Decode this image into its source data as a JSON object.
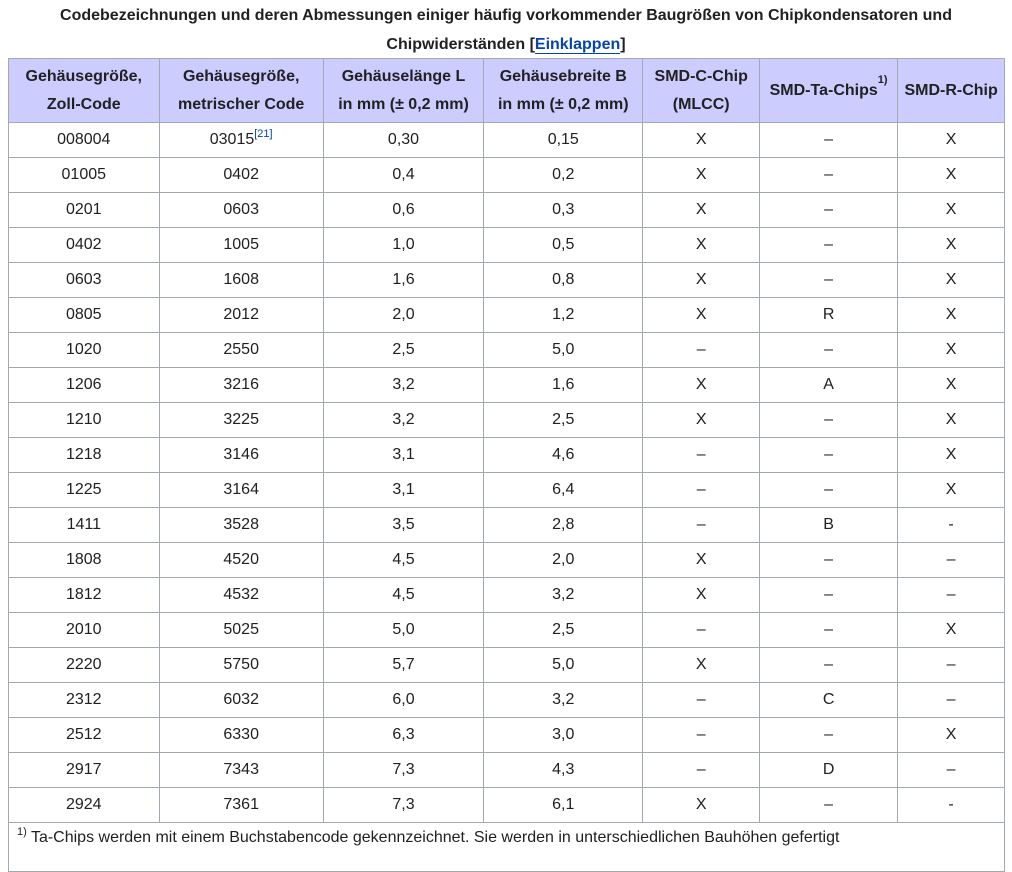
{
  "caption": {
    "line1": "Codebezeichnungen und deren Abmessungen einiger häufig vorkommender Baugrößen von Chipkondensatoren und",
    "line2": "Chipwiderständen",
    "toggle_open": "[",
    "toggle_label": "Einklappen",
    "toggle_close": "]"
  },
  "headers": {
    "c1a": "Gehäusegröße,",
    "c1b": "Zoll-Code",
    "c2a": "Gehäusegröße,",
    "c2b": "metrischer Code",
    "c3a": "Gehäuselänge L",
    "c3b": "in mm (± 0,2 mm)",
    "c4a": "Gehäusebreite B",
    "c4b": "in mm (± 0,2 mm)",
    "c5a": "SMD-C-Chip",
    "c5b": "(MLCC)",
    "c6": "SMD-Ta-Chips",
    "c6sup": "1)",
    "c7": "SMD-R-Chip"
  },
  "rows": [
    {
      "zoll": "008004",
      "metric": "03015",
      "metric_ref": "[21]",
      "l": "0,30",
      "b": "0,15",
      "c": "X",
      "ta": "–",
      "r": "X"
    },
    {
      "zoll": "01005",
      "metric": "0402",
      "l": "0,4",
      "b": "0,2",
      "c": "X",
      "ta": "–",
      "r": "X"
    },
    {
      "zoll": "0201",
      "metric": "0603",
      "l": "0,6",
      "b": "0,3",
      "c": "X",
      "ta": "–",
      "r": "X"
    },
    {
      "zoll": "0402",
      "metric": "1005",
      "l": "1,0",
      "b": "0,5",
      "c": "X",
      "ta": "–",
      "r": "X"
    },
    {
      "zoll": "0603",
      "metric": "1608",
      "l": "1,6",
      "b": "0,8",
      "c": "X",
      "ta": "–",
      "r": "X"
    },
    {
      "zoll": "0805",
      "metric": "2012",
      "l": "2,0",
      "b": "1,2",
      "c": "X",
      "ta": "R",
      "r": "X"
    },
    {
      "zoll": "1020",
      "metric": "2550",
      "l": "2,5",
      "b": "5,0",
      "c": "–",
      "ta": "–",
      "r": "X"
    },
    {
      "zoll": "1206",
      "metric": "3216",
      "l": "3,2",
      "b": "1,6",
      "c": "X",
      "ta": "A",
      "r": "X"
    },
    {
      "zoll": "1210",
      "metric": "3225",
      "l": "3,2",
      "b": "2,5",
      "c": "X",
      "ta": "–",
      "r": "X"
    },
    {
      "zoll": "1218",
      "metric": "3146",
      "l": "3,1",
      "b": "4,6",
      "c": "–",
      "ta": "–",
      "r": "X"
    },
    {
      "zoll": "1225",
      "metric": "3164",
      "l": "3,1",
      "b": "6,4",
      "c": "–",
      "ta": "–",
      "r": "X"
    },
    {
      "zoll": "1411",
      "metric": "3528",
      "l": "3,5",
      "b": "2,8",
      "c": "–",
      "ta": "B",
      "r": "-"
    },
    {
      "zoll": "1808",
      "metric": "4520",
      "l": "4,5",
      "b": "2,0",
      "c": "X",
      "ta": "–",
      "r": "–"
    },
    {
      "zoll": "1812",
      "metric": "4532",
      "l": "4,5",
      "b": "3,2",
      "c": "X",
      "ta": "–",
      "r": "–"
    },
    {
      "zoll": "2010",
      "metric": "5025",
      "l": "5,0",
      "b": "2,5",
      "c": "–",
      "ta": "–",
      "r": "X"
    },
    {
      "zoll": "2220",
      "metric": "5750",
      "l": "5,7",
      "b": "5,0",
      "c": "X",
      "ta": "–",
      "r": "–"
    },
    {
      "zoll": "2312",
      "metric": "6032",
      "l": "6,0",
      "b": "3,2",
      "c": "–",
      "ta": "C",
      "r": "–"
    },
    {
      "zoll": "2512",
      "metric": "6330",
      "l": "6,3",
      "b": "3,0",
      "c": "–",
      "ta": "–",
      "r": "X"
    },
    {
      "zoll": "2917",
      "metric": "7343",
      "l": "7,3",
      "b": "4,3",
      "c": "–",
      "ta": "D",
      "r": "–"
    },
    {
      "zoll": "2924",
      "metric": "7361",
      "l": "7,3",
      "b": "6,1",
      "c": "X",
      "ta": "–",
      "r": "-"
    }
  ],
  "footnote": {
    "marker": "1)",
    "text": " Ta-Chips werden mit einem Buchstabencode gekennzeichnet. Sie werden in unterschiedlichen Bauhöhen gefertigt"
  },
  "colors": {
    "header_bg": "#ccccff",
    "border": "#a2a9b1",
    "link": "#0645ad"
  }
}
